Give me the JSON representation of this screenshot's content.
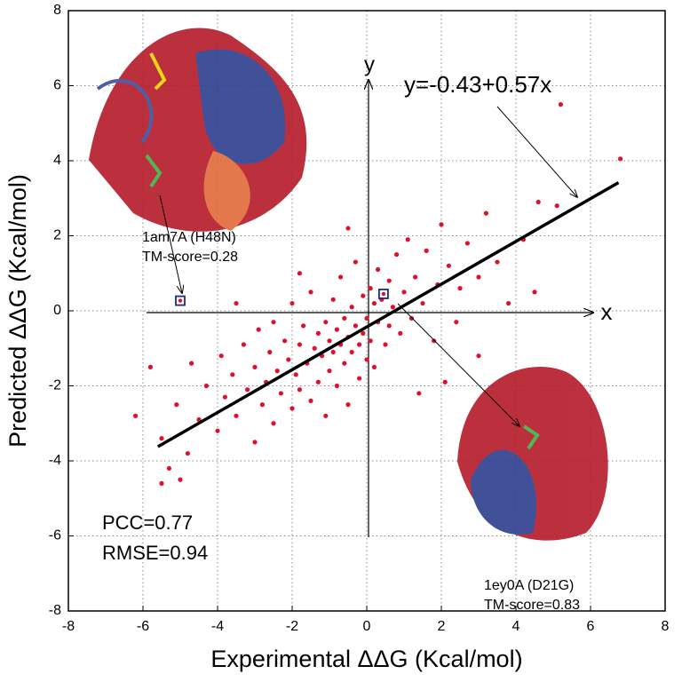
{
  "chart_data": {
    "type": "scatter",
    "xlabel": "Experimental ΔΔG (Kcal/mol)",
    "ylabel": "Predicted ΔΔG (Kcal/mol)",
    "xlim": [
      -8,
      8
    ],
    "ylim": [
      -8,
      8
    ],
    "xticks": [
      -8,
      -6,
      -4,
      -2,
      0,
      2,
      4,
      6,
      8
    ],
    "yticks": [
      -8,
      -6,
      -4,
      -2,
      0,
      2,
      4,
      6,
      8
    ],
    "grid": true,
    "color": "#e0102a",
    "x": [
      -5.5,
      -5.3,
      -5,
      -4.8,
      -5.1,
      -4.7,
      -4.5,
      -4.3,
      -4,
      -3.9,
      -3.8,
      -3.6,
      -3.5,
      -3.3,
      -3.2,
      -3,
      -3,
      -2.9,
      -2.8,
      -2.7,
      -2.6,
      -2.5,
      -2.5,
      -2.4,
      -2.3,
      -2.2,
      -2.1,
      -2,
      -2,
      -1.9,
      -1.8,
      -1.8,
      -1.7,
      -1.6,
      -1.5,
      -1.5,
      -1.4,
      -1.3,
      -1.3,
      -1.2,
      -1.1,
      -1.1,
      -1,
      -1,
      -0.9,
      -0.9,
      -0.8,
      -0.8,
      -0.7,
      -0.7,
      -0.6,
      -0.6,
      -0.5,
      -0.5,
      -0.4,
      -0.4,
      -0.3,
      -0.3,
      -0.2,
      -0.2,
      -0.1,
      -0.1,
      0,
      0,
      0.1,
      0.1,
      0.2,
      0.2,
      0.3,
      0.3,
      0.4,
      0.5,
      0.6,
      0.6,
      0.7,
      0.8,
      0.9,
      1,
      1.1,
      1.2,
      1.3,
      1.5,
      1.6,
      1.8,
      1.9,
      2,
      2.2,
      2.4,
      2.5,
      2.7,
      3,
      3.2,
      3.5,
      3.8,
      4.2,
      4.6,
      5.1,
      5.2,
      6.8,
      -6.2,
      -5.8,
      -5.5,
      3,
      2.1,
      1.4,
      -0.5,
      -1.8,
      -3.5,
      4.5
    ],
    "values": [
      -4.6,
      -4.2,
      -4.5,
      -3.8,
      -2.5,
      -1.4,
      -2.9,
      -2,
      -3.2,
      -1.2,
      -2.3,
      -1.7,
      -2.8,
      -0.9,
      -2.1,
      -1.5,
      -3.5,
      -0.5,
      -2.5,
      -1.9,
      -1.1,
      -3,
      -0.3,
      -1.6,
      -2.2,
      -0.8,
      -1.3,
      -2.6,
      0.2,
      -1.7,
      -0.9,
      -2.1,
      -0.4,
      -1.4,
      -2.4,
      0.5,
      -1,
      -0.6,
      -1.9,
      -1.2,
      -0.3,
      -2.8,
      -0.8,
      -1.6,
      0.3,
      -1.1,
      -0.5,
      -2,
      -0.9,
      0.9,
      -1.4,
      -0.2,
      -0.7,
      -2.5,
      0.1,
      -1.1,
      -0.4,
      1.3,
      -0.9,
      -1.8,
      0.4,
      -0.6,
      -0.2,
      -1.3,
      0.6,
      -0.8,
      0.2,
      -1.5,
      -0.3,
      1.1,
      0.3,
      -0.9,
      0.8,
      -0.4,
      0.1,
      1.5,
      -0.6,
      0.5,
      1.9,
      -0.2,
      0.9,
      0.2,
      1.6,
      -0.8,
      0.7,
      2.3,
      1.2,
      -0.3,
      0.6,
      1.8,
      0.9,
      2.6,
      1.3,
      0.2,
      1.9,
      2.9,
      2.8,
      5.5,
      4.05,
      -2.8,
      -1.5,
      -3.4,
      -1.2,
      -1.9,
      -2.2,
      2.2,
      1,
      0.2,
      0.5
    ],
    "highlighted": {
      "x": [
        -5,
        0.45
      ],
      "values": [
        0.27,
        0.45
      ]
    },
    "fit": {
      "intercept": -0.43,
      "slope": 0.57,
      "x_range": [
        -5.6,
        6.75
      ]
    },
    "annotations": [
      "y=-0.43+0.57x",
      "1am7A (H48N)",
      "TM-score=0.28",
      "1ey0A (D21G)",
      "TM-score=0.83",
      "PCC=0.77",
      "RMSE=0.94",
      "x",
      "y"
    ]
  }
}
